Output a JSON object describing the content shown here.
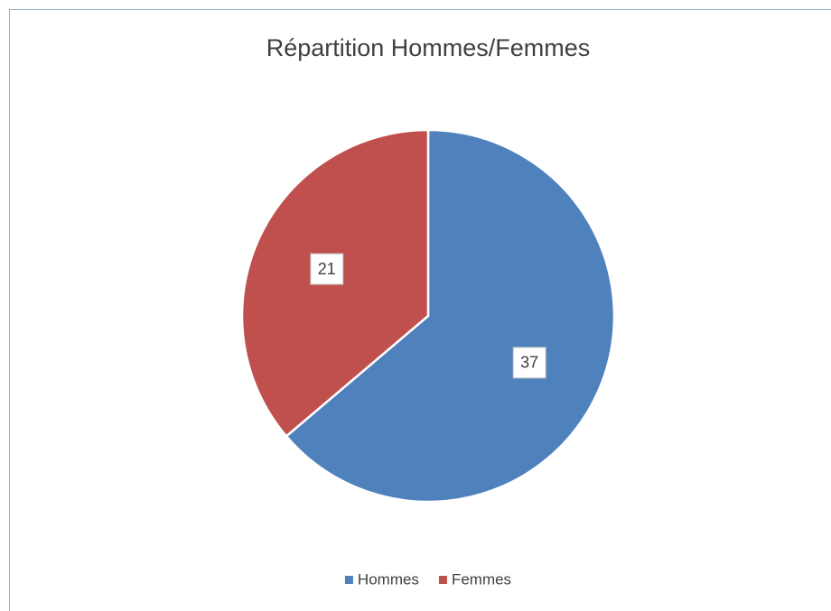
{
  "chart_data": {
    "type": "pie",
    "title": "Répartition Hommes/Femmes",
    "categories": [
      "Hommes",
      "Femmes"
    ],
    "values": [
      37,
      21
    ],
    "colors": [
      "#4f81bd",
      "#c0504d"
    ],
    "legend": "bottom"
  }
}
